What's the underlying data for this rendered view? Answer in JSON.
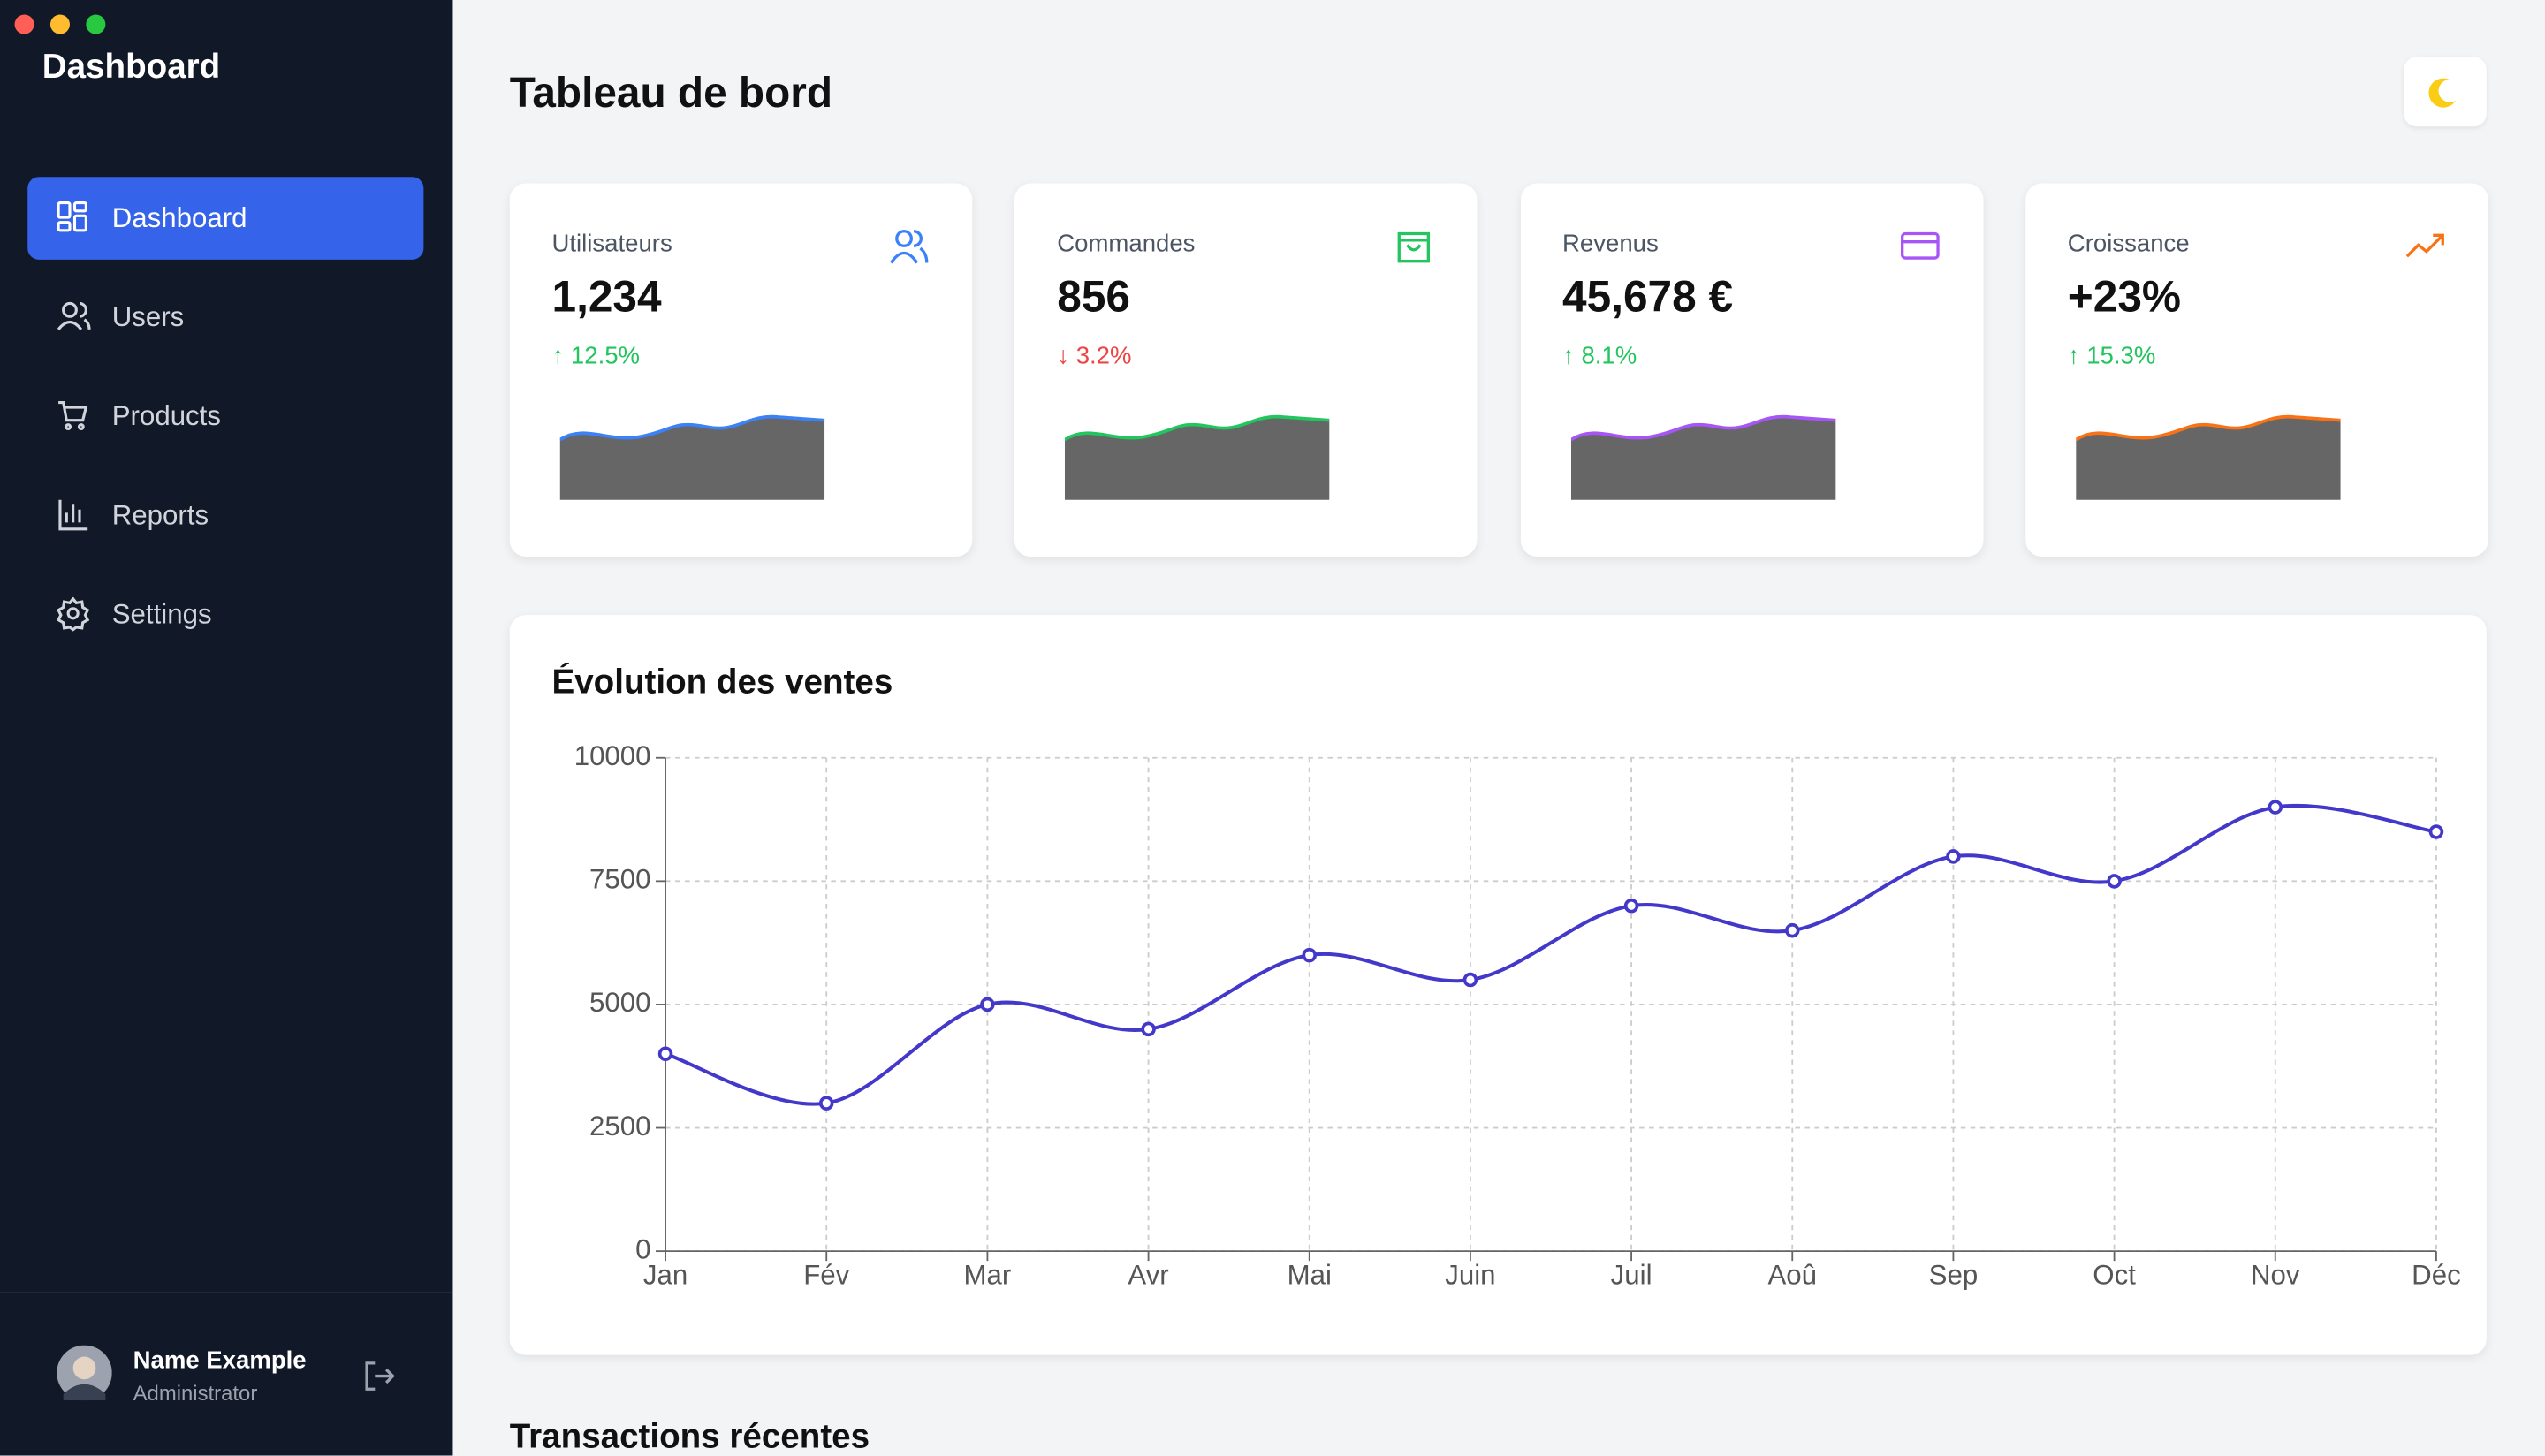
{
  "sidebar": {
    "brand": "Dashboard",
    "nav": [
      "Dashboard",
      "Users",
      "Products",
      "Reports",
      "Settings"
    ],
    "user": {
      "name": "Name Example",
      "role": "Administrator"
    }
  },
  "header": {
    "title": "Tableau de bord"
  },
  "stats": [
    {
      "title": "Utilisateurs",
      "value": "1,234",
      "change": "↑ 12.5%",
      "change_color": "#22c55e",
      "color": "#3b82f6"
    },
    {
      "title": "Commandes",
      "value": "856",
      "change": "↓ 3.2%",
      "change_color": "#ef4444",
      "color": "#22c55e"
    },
    {
      "title": "Revenus",
      "value": "45,678 €",
      "change": "↑ 8.1%",
      "change_color": "#22c55e",
      "color": "#a855f7"
    },
    {
      "title": "Croissance",
      "value": "+23%",
      "change": "↑ 15.3%",
      "change_color": "#22c55e",
      "color": "#f97316"
    }
  ],
  "chart_data": {
    "type": "line",
    "title": "Évolution des ventes",
    "categories": [
      "Jan",
      "Fév",
      "Mar",
      "Avr",
      "Mai",
      "Juin",
      "Juil",
      "Aoû",
      "Sep",
      "Oct",
      "Nov",
      "Déc"
    ],
    "values": [
      4000,
      3000,
      5000,
      4500,
      6000,
      5500,
      7000,
      6500,
      8000,
      7500,
      9000,
      8500
    ],
    "color": "#4338ca",
    "ylim": [
      0,
      10000
    ],
    "yticks": [
      0,
      2500,
      5000,
      7500,
      10000
    ],
    "grid": true
  },
  "transactions": {
    "title": "Transactions récentes"
  }
}
